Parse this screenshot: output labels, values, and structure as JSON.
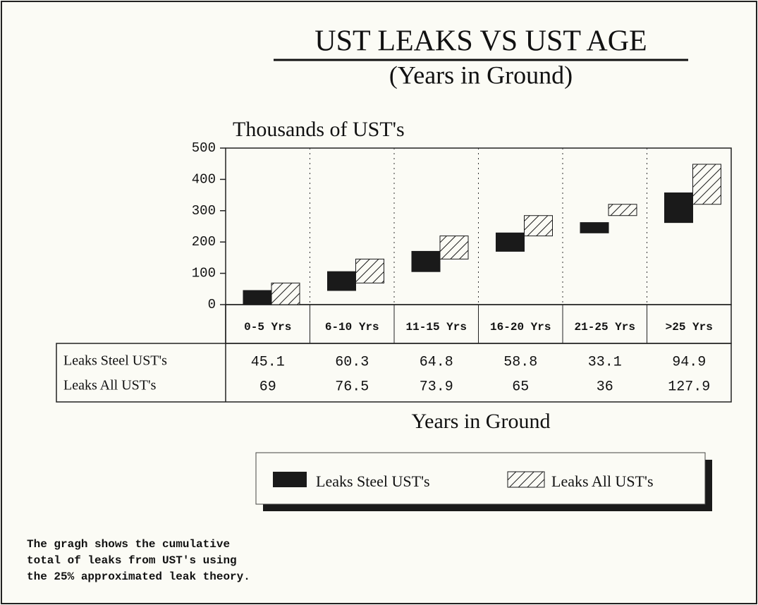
{
  "chart_data": {
    "type": "bar",
    "cumulative": true,
    "title": "UST LEAKS VS UST AGE",
    "subtitle": "(Years in Ground)",
    "y_axis_label": "Thousands of UST's",
    "x_axis_label": "Years in Ground",
    "categories": [
      "0-5 Yrs",
      "6-10 Yrs",
      "11-15 Yrs",
      "16-20 Yrs",
      "21-25 Yrs",
      ">25 Yrs"
    ],
    "series": [
      {
        "name": "Leaks Steel UST's",
        "color": "#1a1a1a",
        "pattern": "solid",
        "values": [
          45.1,
          60.3,
          64.8,
          58.8,
          33.1,
          94.9
        ]
      },
      {
        "name": "Leaks All UST's",
        "color": "#1a1a1a",
        "pattern": "hatch",
        "values": [
          69,
          76.5,
          73.9,
          65,
          36,
          127.9
        ]
      }
    ],
    "ylim": [
      0,
      500
    ],
    "yticks": [
      0,
      100,
      200,
      300,
      400,
      500
    ],
    "grid": false,
    "note": [
      "The gragh shows the cumulative",
      "total of leaks from UST's using",
      "the 25% approximated leak theory."
    ]
  }
}
